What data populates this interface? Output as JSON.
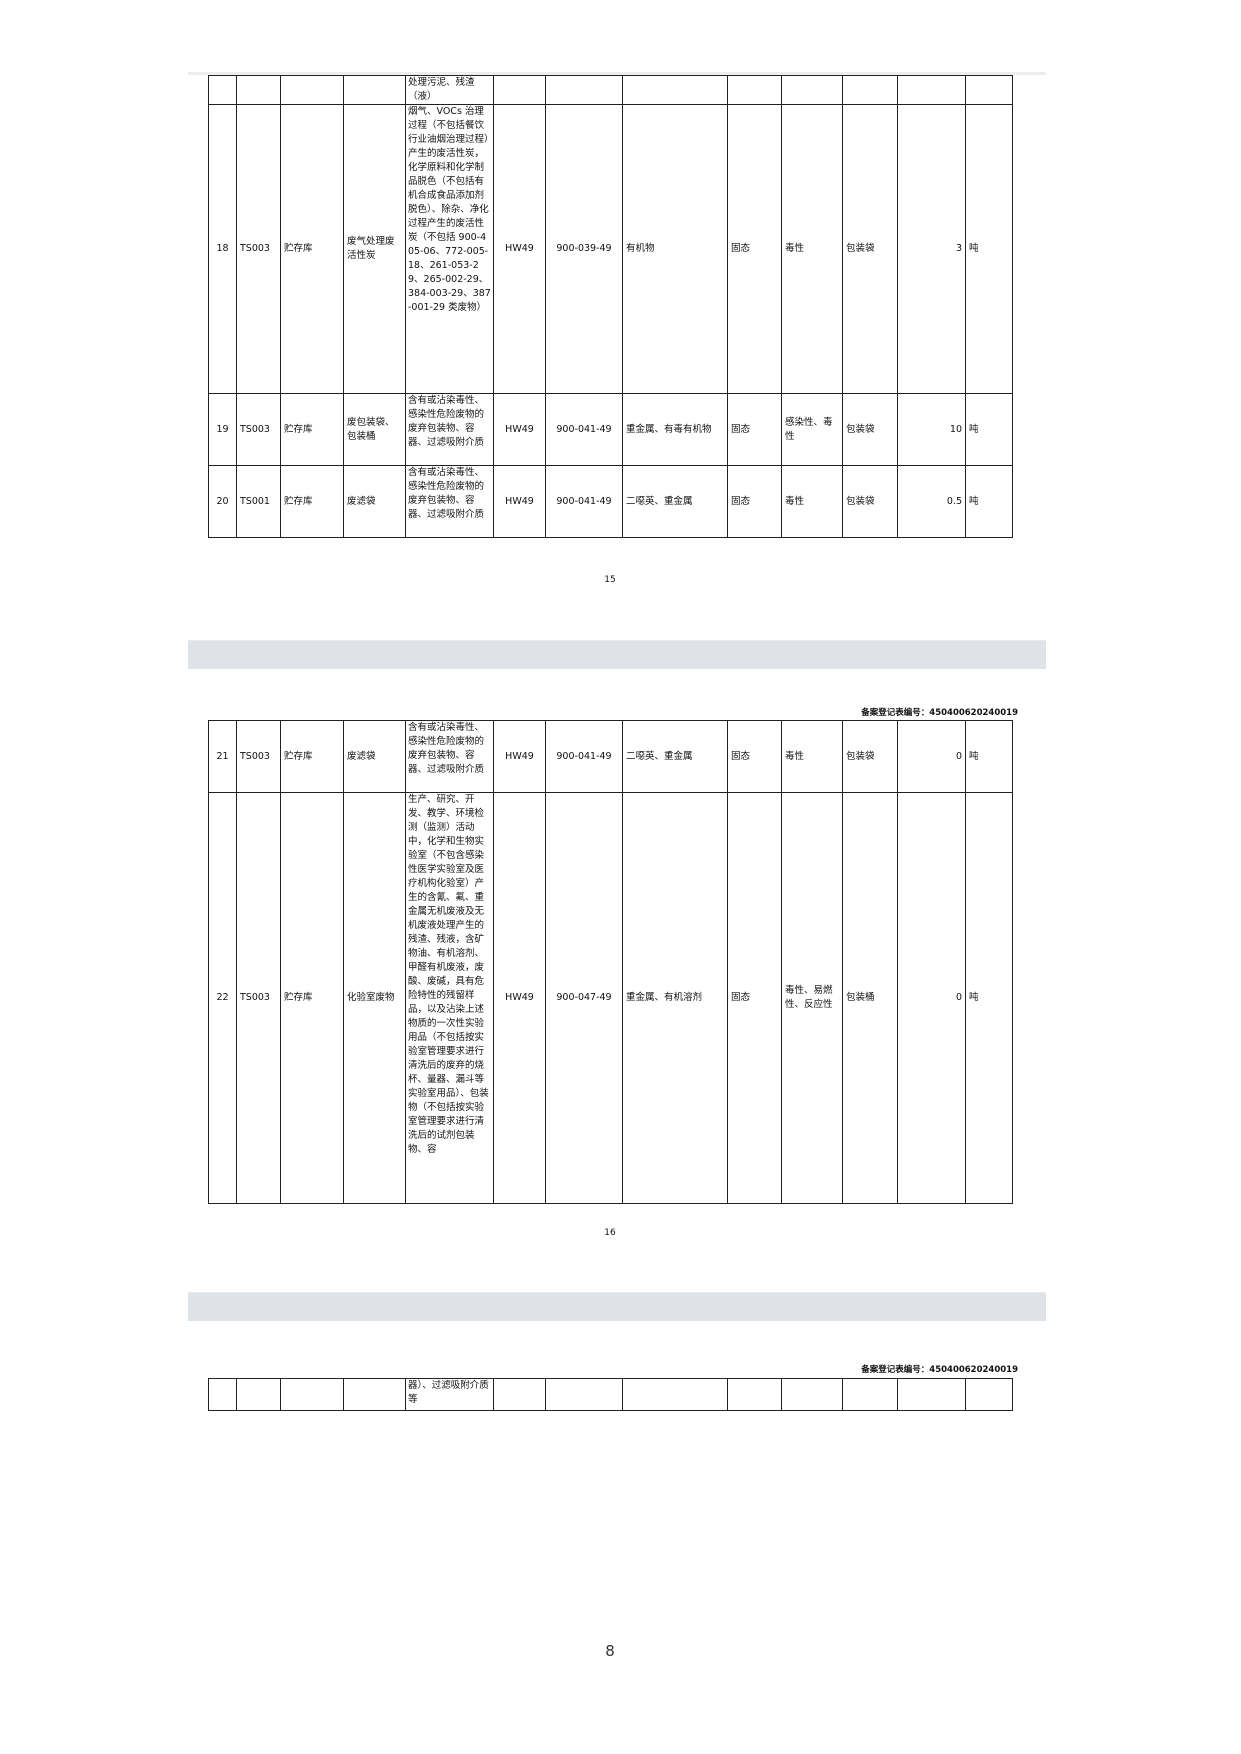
{
  "registration_label": "备案登记表编号：",
  "registration_number": "450400620240019",
  "pages": [
    {
      "rows": [
        {
          "no": "",
          "code": "",
          "location": "",
          "name": "",
          "desc": "处理污泥、残渣（液）",
          "category": "",
          "waste_code": "",
          "hazard_component": "",
          "form": "",
          "hazard": "",
          "package": "",
          "amount": "",
          "unit": ""
        },
        {
          "no": "18",
          "code": "TS003",
          "location": "贮存库",
          "name": "废气处理废活性炭",
          "desc": "烟气、VOCs 治理过程（不包括餐饮行业油烟治理过程）产生的废活性炭，化学原料和化学制品脱色（不包括有机合成食品添加剂脱色）、除杂、净化过程产生的废活性炭（不包括 900-405-06、772-005-18、261-053-29、265-002-29、384-003-29、387-001-29 类废物）",
          "category": "HW49",
          "waste_code": "900-039-49",
          "hazard_component": "有机物",
          "form": "固态",
          "hazard": "毒性",
          "package": "包装袋",
          "amount": "3",
          "unit": "吨"
        },
        {
          "no": "19",
          "code": "TS003",
          "location": "贮存库",
          "name": "废包装袋、包装桶",
          "desc": "含有或沾染毒性、感染性危险废物的废弃包装物、容器、过滤吸附介质",
          "category": "HW49",
          "waste_code": "900-041-49",
          "hazard_component": "重金属、有毒有机物",
          "form": "固态",
          "hazard": "感染性、毒性",
          "package": "包装袋",
          "amount": "10",
          "unit": "吨"
        },
        {
          "no": "20",
          "code": "TS001",
          "location": "贮存库",
          "name": "废滤袋",
          "desc": "含有或沾染毒性、感染性危险废物的废弃包装物、容器、过滤吸附介质",
          "category": "HW49",
          "waste_code": "900-041-49",
          "hazard_component": "二噁英、重金属",
          "form": "固态",
          "hazard": "毒性",
          "package": "包装袋",
          "amount": "0.5",
          "unit": "吨"
        }
      ],
      "page_number": "15"
    },
    {
      "rows": [
        {
          "no": "21",
          "code": "TS003",
          "location": "贮存库",
          "name": "废滤袋",
          "desc": "含有或沾染毒性、感染性危险废物的废弃包装物、容器、过滤吸附介质",
          "category": "HW49",
          "waste_code": "900-041-49",
          "hazard_component": "二噁英、重金属",
          "form": "固态",
          "hazard": "毒性",
          "package": "包装袋",
          "amount": "0",
          "unit": "吨"
        },
        {
          "no": "22",
          "code": "TS003",
          "location": "贮存库",
          "name": "化验室废物",
          "desc": "生产、研究、开发、教学、环境检测（监测）活动中，化学和生物实验室（不包含感染性医学实验室及医疗机构化验室）产生的含氰、氟、重金属无机废液及无机废液处理产生的残渣、残液，含矿物油、有机溶剂、甲醛有机废液，废酸、废碱，具有危险特性的残留样品，以及沾染上述物质的一次性实验用品（不包括按实验室管理要求进行清洗后的废弃的烧杯、量器、漏斗等实验室用品）、包装物（不包括按实验室管理要求进行清洗后的试剂包装物、容",
          "category": "HW49",
          "waste_code": "900-047-49",
          "hazard_component": "重金属、有机溶剂",
          "form": "固态",
          "hazard": "毒性、易燃性、反应性",
          "package": "包装桶",
          "amount": "0",
          "unit": "吨"
        }
      ],
      "page_number": "16"
    },
    {
      "rows": [
        {
          "no": "",
          "code": "",
          "location": "",
          "name": "",
          "desc": "器）、过滤吸附介质等",
          "category": "",
          "waste_code": "",
          "hazard_component": "",
          "form": "",
          "hazard": "",
          "package": "",
          "amount": "",
          "unit": ""
        }
      ],
      "page_number": ""
    }
  ],
  "footer_page": "8"
}
